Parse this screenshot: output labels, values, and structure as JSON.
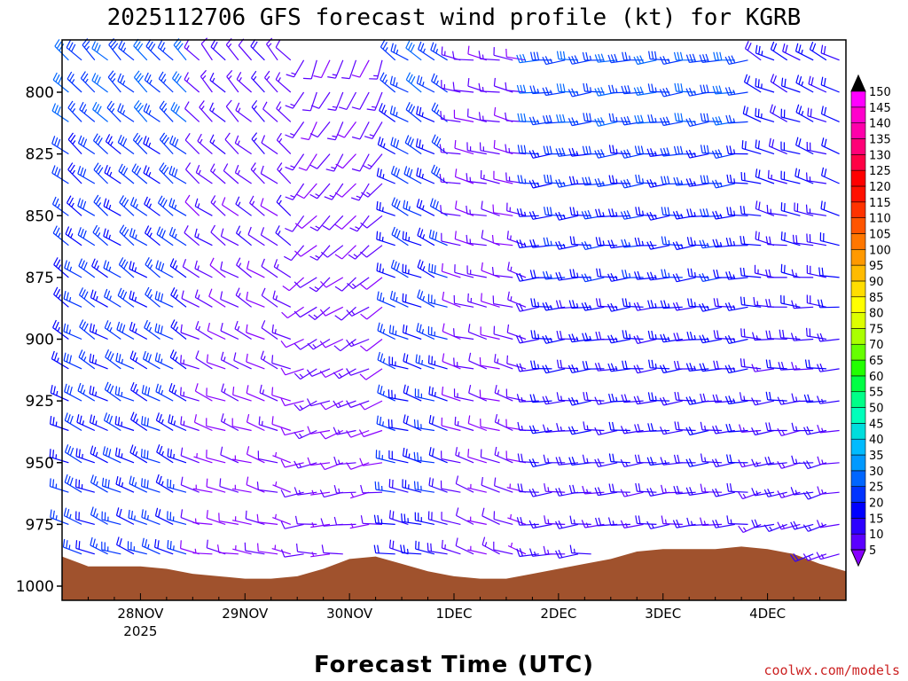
{
  "chart_data": {
    "type": "wind_barb_profile",
    "title": "2025112706 GFS forecast wind profile (kt) for KGRB",
    "xlabel": "Forecast Time (UTC)",
    "ylabel": "",
    "x_ticks": [
      {
        "label": "28NOV",
        "sublabel": "2025",
        "hours": 18
      },
      {
        "label": "29NOV",
        "sublabel": "",
        "hours": 42
      },
      {
        "label": "30NOV",
        "sublabel": "",
        "hours": 66
      },
      {
        "label": "1DEC",
        "sublabel": "",
        "hours": 90
      },
      {
        "label": "2DEC",
        "sublabel": "",
        "hours": 114
      },
      {
        "label": "3DEC",
        "sublabel": "",
        "hours": 138
      },
      {
        "label": "4DEC",
        "sublabel": "",
        "hours": 162
      }
    ],
    "xlim_hours": [
      0,
      180
    ],
    "y_ticks": [
      "800",
      "825",
      "850",
      "875",
      "900",
      "925",
      "950",
      "975",
      "1000"
    ],
    "ylim_hpa": [
      780,
      1004
    ],
    "levels_hpa": [
      787,
      800,
      812,
      825,
      837,
      850,
      862,
      875,
      887,
      900,
      912,
      925,
      937,
      950,
      962,
      975,
      987
    ],
    "surface_pressure": {
      "hours": [
        0,
        6,
        12,
        18,
        24,
        30,
        36,
        42,
        48,
        54,
        60,
        66,
        72,
        78,
        84,
        90,
        96,
        102,
        108,
        114,
        120,
        126,
        132,
        138,
        144,
        150,
        156,
        162,
        168,
        174,
        180
      ],
      "hpa": [
        988,
        992,
        992,
        992,
        993,
        995,
        996,
        997,
        997,
        996,
        993,
        989,
        988,
        991,
        994,
        996,
        997,
        997,
        995,
        993,
        991,
        989,
        986,
        985,
        985,
        985,
        984,
        985,
        987,
        991,
        994
      ],
      "color": "#a0522d"
    },
    "segments": [
      {
        "h0": 0,
        "h1": 30,
        "dir_top": 315,
        "dir_bottom": 290,
        "spd_top": 28,
        "spd_bottom": 25
      },
      {
        "h0": 30,
        "h1": 54,
        "dir_top": 320,
        "dir_bottom": 280,
        "spd_top": 15,
        "spd_bottom": 8
      },
      {
        "h0": 54,
        "h1": 76,
        "dir_top": 200,
        "dir_bottom": 270,
        "spd_top": 12,
        "spd_bottom": 10
      },
      {
        "h0": 76,
        "h1": 90,
        "dir_top": 305,
        "dir_bottom": 280,
        "spd_top": 28,
        "spd_bottom": 22
      },
      {
        "h0": 90,
        "h1": 108,
        "dir_top": 280,
        "dir_bottom": 290,
        "spd_top": 12,
        "spd_bottom": 10
      },
      {
        "h0": 108,
        "h1": 158,
        "dir_top": 265,
        "dir_bottom": 265,
        "spd_top": 30,
        "spd_bottom": 15
      },
      {
        "h0": 158,
        "h1": 180,
        "dir_top": 300,
        "dir_bottom": 250,
        "spd_top": 22,
        "spd_bottom": 15
      }
    ],
    "colorbar": {
      "levels": [
        5,
        10,
        15,
        20,
        25,
        30,
        35,
        40,
        45,
        50,
        55,
        60,
        65,
        70,
        75,
        80,
        85,
        90,
        95,
        100,
        105,
        110,
        115,
        120,
        125,
        130,
        135,
        140,
        145,
        150
      ],
      "colors": [
        "#8800ff",
        "#5b00ff",
        "#2d00ff",
        "#0000ff",
        "#0033ff",
        "#0066ff",
        "#0099ff",
        "#00bbff",
        "#00dddd",
        "#00ffbb",
        "#00ff88",
        "#00ff44",
        "#22ff00",
        "#66ff00",
        "#aaff00",
        "#ddff00",
        "#ffff00",
        "#ffdd00",
        "#ffbb00",
        "#ff9900",
        "#ff7700",
        "#ff5500",
        "#ff3300",
        "#ff1100",
        "#ff0000",
        "#ff0044",
        "#ff0077",
        "#ff00aa",
        "#ff00cc",
        "#ff00ff"
      ],
      "over_color": "#000000",
      "under_color": "#8800ff"
    }
  },
  "credit": "coolwx.com/models",
  "credit_color": "#cc2222"
}
